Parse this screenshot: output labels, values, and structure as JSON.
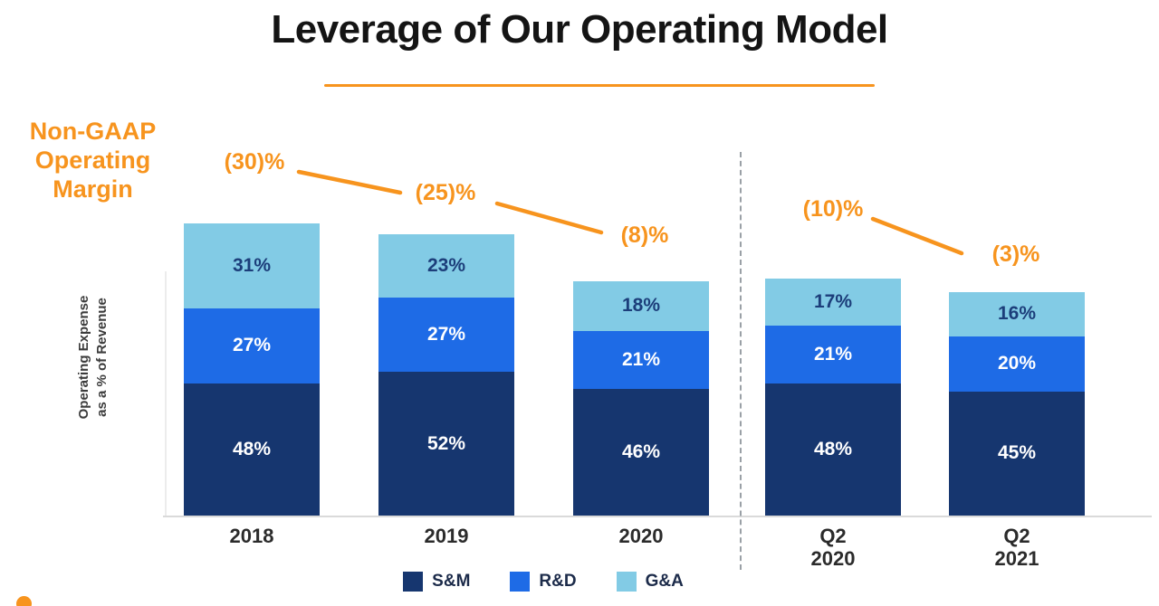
{
  "title": "Leverage of Our Operating Model",
  "left_label": "Non-GAAP\nOperating\nMargin",
  "y_axis_label": "Operating Expense\nas a % of Revenue",
  "colors": {
    "accent_orange": "#F7941E",
    "sm_navy": "#16366F",
    "rd_blue": "#1E6BE6",
    "ga_lightblue": "#82CBE5",
    "axis_text": "#2b2b2b",
    "ga_label_navy": "#1C3E7A",
    "white": "#FFFFFF"
  },
  "chart_data": {
    "type": "bar",
    "stacked": true,
    "title": "Leverage of Our Operating Model",
    "ylabel": "Operating Expense as a % of Revenue",
    "unit": "%",
    "legend_position": "bottom",
    "categories": [
      "2018",
      "2019",
      "2020",
      "Q2\n2020",
      "Q2\n2021"
    ],
    "series": [
      {
        "name": "S&M",
        "color": "#16366F",
        "label_color": "#FFFFFF",
        "values": [
          48,
          52,
          46,
          48,
          45
        ]
      },
      {
        "name": "R&D",
        "color": "#1E6BE6",
        "label_color": "#FFFFFF",
        "values": [
          27,
          27,
          21,
          21,
          20
        ]
      },
      {
        "name": "G&A",
        "color": "#82CBE5",
        "label_color": "#1C3E7A",
        "values": [
          31,
          23,
          18,
          17,
          16
        ]
      }
    ],
    "annotations": {
      "label": "Non-GAAP Operating Margin",
      "values": [
        "(30)%",
        "(25)%",
        "(8)%",
        "(10)%",
        "(3)%"
      ]
    }
  }
}
